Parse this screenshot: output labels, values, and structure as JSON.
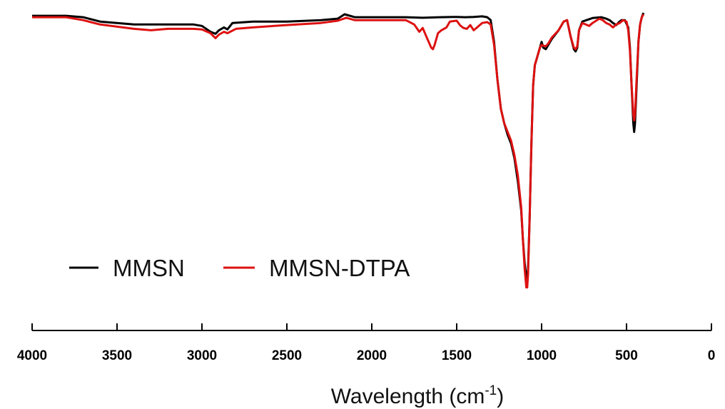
{
  "chart_data": {
    "type": "line",
    "title": "",
    "xlabel": "Wavelength (cm",
    "xlabel_sup": "-1",
    "xlabel_close": ")",
    "ylabel": "",
    "xlim": [
      4000,
      0
    ],
    "x_reversed": true,
    "ylim": [
      0,
      100
    ],
    "grid": false,
    "legend": "bottom-left",
    "x_ticks": [
      "4000",
      "3500",
      "3000",
      "2500",
      "2000",
      "1500",
      "1000",
      "500",
      "0"
    ],
    "series": [
      {
        "name": "MMSN",
        "color": "#000000",
        "points": [
          [
            4000,
            99
          ],
          [
            3800,
            99
          ],
          [
            3700,
            98.5
          ],
          [
            3600,
            97
          ],
          [
            3400,
            96
          ],
          [
            3200,
            96
          ],
          [
            3050,
            96
          ],
          [
            3000,
            95.5
          ],
          [
            2950,
            93.5
          ],
          [
            2920,
            92.8
          ],
          [
            2900,
            94
          ],
          [
            2870,
            95
          ],
          [
            2850,
            94.3
          ],
          [
            2820,
            96.5
          ],
          [
            2700,
            97
          ],
          [
            2500,
            97
          ],
          [
            2300,
            97.5
          ],
          [
            2200,
            98
          ],
          [
            2160,
            99.5
          ],
          [
            2100,
            98.5
          ],
          [
            1950,
            98.5
          ],
          [
            1800,
            98.5
          ],
          [
            1700,
            98.3
          ],
          [
            1600,
            98.5
          ],
          [
            1500,
            98.6
          ],
          [
            1450,
            98.5
          ],
          [
            1400,
            98.6
          ],
          [
            1350,
            98.8
          ],
          [
            1320,
            98.5
          ],
          [
            1300,
            97.5
          ],
          [
            1280,
            90
          ],
          [
            1260,
            77
          ],
          [
            1240,
            67
          ],
          [
            1220,
            62
          ],
          [
            1200,
            58
          ],
          [
            1180,
            55
          ],
          [
            1160,
            50
          ],
          [
            1140,
            42
          ],
          [
            1120,
            32
          ],
          [
            1110,
            22
          ],
          [
            1100,
            14
          ],
          [
            1090,
            9
          ],
          [
            1085,
            8
          ],
          [
            1080,
            12
          ],
          [
            1070,
            30
          ],
          [
            1060,
            55
          ],
          [
            1050,
            75
          ],
          [
            1040,
            82
          ],
          [
            1025,
            85
          ],
          [
            1010,
            88
          ],
          [
            1000,
            90
          ],
          [
            990,
            88
          ],
          [
            975,
            87.5
          ],
          [
            960,
            89
          ],
          [
            940,
            91
          ],
          [
            900,
            94
          ],
          [
            870,
            97
          ],
          [
            850,
            97.5
          ],
          [
            830,
            92
          ],
          [
            810,
            87.5
          ],
          [
            800,
            86.7
          ],
          [
            790,
            88
          ],
          [
            780,
            94
          ],
          [
            760,
            97
          ],
          [
            700,
            98.2
          ],
          [
            650,
            98.5
          ],
          [
            620,
            98
          ],
          [
            600,
            97.5
          ],
          [
            580,
            96.5
          ],
          [
            560,
            95.8
          ],
          [
            545,
            96.8
          ],
          [
            530,
            97.5
          ],
          [
            510,
            97.5
          ],
          [
            490,
            95
          ],
          [
            480,
            88
          ],
          [
            470,
            75
          ],
          [
            460,
            62
          ],
          [
            455,
            59
          ],
          [
            450,
            62
          ],
          [
            440,
            76
          ],
          [
            430,
            90
          ],
          [
            420,
            96
          ],
          [
            410,
            98.5
          ],
          [
            400,
            100
          ]
        ]
      },
      {
        "name": "MMSN-DTPA",
        "color": "#dd1111",
        "points": [
          [
            4000,
            98.5
          ],
          [
            3800,
            98.5
          ],
          [
            3700,
            97.5
          ],
          [
            3600,
            96
          ],
          [
            3400,
            94.5
          ],
          [
            3300,
            94
          ],
          [
            3200,
            94.5
          ],
          [
            3050,
            94.5
          ],
          [
            3000,
            94.3
          ],
          [
            2950,
            93
          ],
          [
            2920,
            91.3
          ],
          [
            2900,
            92.5
          ],
          [
            2870,
            93.5
          ],
          [
            2850,
            93
          ],
          [
            2800,
            94.5
          ],
          [
            2700,
            95
          ],
          [
            2500,
            95.8
          ],
          [
            2300,
            96.5
          ],
          [
            2200,
            97.3
          ],
          [
            2150,
            98.3
          ],
          [
            2100,
            97.5
          ],
          [
            1950,
            97.5
          ],
          [
            1800,
            97.5
          ],
          [
            1750,
            96
          ],
          [
            1720,
            93.5
          ],
          [
            1700,
            94.8
          ],
          [
            1680,
            92
          ],
          [
            1650,
            88
          ],
          [
            1640,
            87.5
          ],
          [
            1630,
            89
          ],
          [
            1610,
            93
          ],
          [
            1590,
            94
          ],
          [
            1560,
            95
          ],
          [
            1540,
            97
          ],
          [
            1500,
            97.3
          ],
          [
            1480,
            95.7
          ],
          [
            1460,
            94.8
          ],
          [
            1440,
            94.5
          ],
          [
            1420,
            95.8
          ],
          [
            1400,
            94
          ],
          [
            1380,
            95
          ],
          [
            1350,
            96.5
          ],
          [
            1320,
            96.8
          ],
          [
            1300,
            96
          ],
          [
            1280,
            89
          ],
          [
            1260,
            77
          ],
          [
            1240,
            67
          ],
          [
            1220,
            62
          ],
          [
            1200,
            59
          ],
          [
            1180,
            56
          ],
          [
            1160,
            51
          ],
          [
            1140,
            44
          ],
          [
            1120,
            33
          ],
          [
            1110,
            22
          ],
          [
            1100,
            12
          ],
          [
            1090,
            5.5
          ],
          [
            1085,
            5.5
          ],
          [
            1080,
            10
          ],
          [
            1070,
            30
          ],
          [
            1060,
            55
          ],
          [
            1050,
            75
          ],
          [
            1040,
            82
          ],
          [
            1025,
            85
          ],
          [
            1010,
            88
          ],
          [
            1000,
            89
          ],
          [
            990,
            88.7
          ],
          [
            975,
            88.5
          ],
          [
            960,
            89.5
          ],
          [
            940,
            91.5
          ],
          [
            900,
            94
          ],
          [
            870,
            97
          ],
          [
            850,
            97.5
          ],
          [
            830,
            92
          ],
          [
            810,
            88
          ],
          [
            800,
            87.5
          ],
          [
            790,
            88.5
          ],
          [
            780,
            94
          ],
          [
            760,
            96.5
          ],
          [
            720,
            95.5
          ],
          [
            700,
            96.5
          ],
          [
            660,
            98
          ],
          [
            640,
            97.5
          ],
          [
            620,
            96.5
          ],
          [
            600,
            96
          ],
          [
            580,
            95
          ],
          [
            560,
            96
          ],
          [
            540,
            96.5
          ],
          [
            520,
            97.5
          ],
          [
            500,
            97
          ],
          [
            490,
            94
          ],
          [
            480,
            87
          ],
          [
            470,
            75
          ],
          [
            460,
            65
          ],
          [
            455,
            63
          ],
          [
            450,
            65
          ],
          [
            440,
            78
          ],
          [
            430,
            90
          ],
          [
            420,
            96
          ],
          [
            410,
            98.5
          ],
          [
            400,
            99.5
          ]
        ]
      }
    ]
  }
}
